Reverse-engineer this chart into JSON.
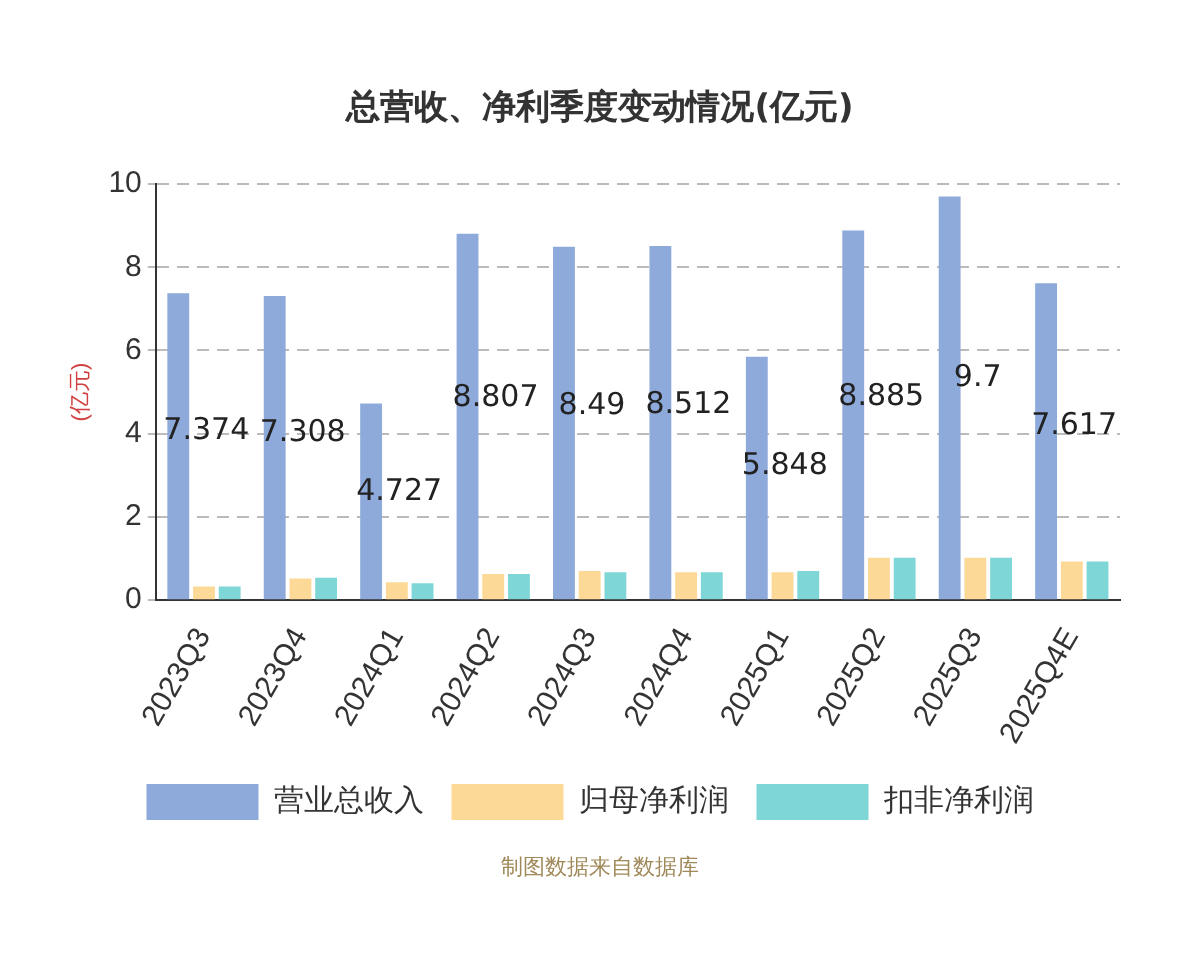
{
  "chart_data": {
    "type": "bar",
    "title": "总营收、净利季度变动情况(亿元)",
    "ylabel": "(亿元)",
    "categories": [
      "2023Q3",
      "2023Q4",
      "2024Q1",
      "2024Q2",
      "2024Q3",
      "2024Q4",
      "2025Q1",
      "2025Q2",
      "2025Q3",
      "2025Q4E"
    ],
    "series": [
      {
        "name": "营业总收入",
        "color": "#8eaadb",
        "values": [
          7.374,
          7.308,
          4.727,
          8.807,
          8.49,
          8.512,
          5.848,
          8.885,
          9.7,
          7.617
        ],
        "value_labels": [
          "7.374",
          "7.308",
          "4.727",
          "8.807",
          "8.49",
          "8.512",
          "5.848",
          "8.885",
          "9.7",
          "7.617"
        ]
      },
      {
        "name": "归母净利润",
        "color": "#fdd998",
        "values": [
          0.33,
          0.52,
          0.43,
          0.63,
          0.7,
          0.67,
          0.67,
          1.02,
          1.02,
          0.93
        ]
      },
      {
        "name": "扣非净利润",
        "color": "#7fd6d6",
        "values": [
          0.33,
          0.54,
          0.41,
          0.63,
          0.67,
          0.67,
          0.7,
          1.02,
          1.02,
          0.93
        ]
      }
    ],
    "ylim": [
      0,
      10
    ],
    "yticks": [
      0,
      2,
      4,
      6,
      8,
      10
    ],
    "grid": "y",
    "legend": "bottom",
    "annotations": [
      "制图数据来自数据库"
    ]
  }
}
